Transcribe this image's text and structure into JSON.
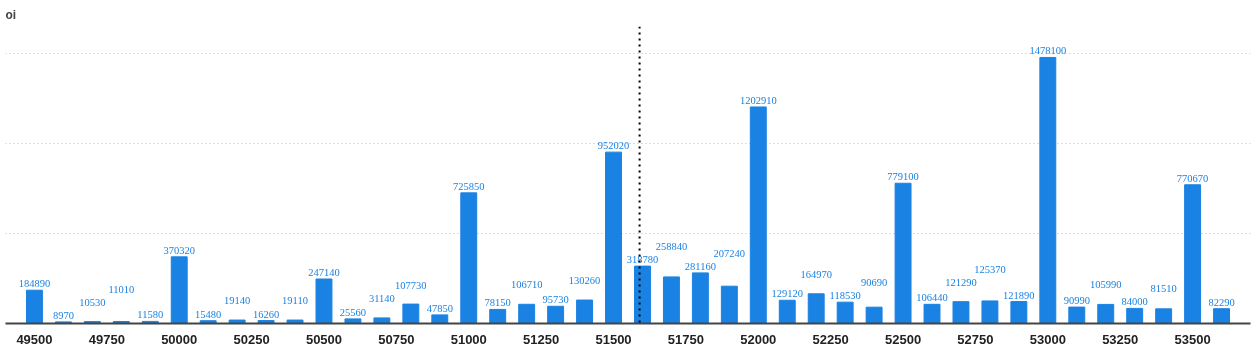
{
  "chart_data": {
    "type": "bar",
    "ylabel": "oi",
    "x": [
      49500,
      49600,
      49700,
      49800,
      49900,
      50000,
      50100,
      50200,
      50300,
      50400,
      50500,
      50600,
      50700,
      50800,
      50900,
      51000,
      51100,
      51200,
      51300,
      51400,
      51500,
      51600,
      51700,
      51800,
      51900,
      52000,
      52100,
      52200,
      52300,
      52400,
      52500,
      52600,
      52700,
      52800,
      52900,
      53000,
      53100,
      53200,
      53300,
      53400,
      53500,
      53600
    ],
    "values": [
      184890,
      8970,
      10530,
      11010,
      11580,
      370320,
      15480,
      19140,
      16260,
      19110,
      247140,
      25560,
      31140,
      107730,
      47850,
      725850,
      78150,
      106710,
      95730,
      130260,
      952020,
      318780,
      258840,
      281160,
      207240,
      1202910,
      129120,
      164970,
      118530,
      90690,
      779100,
      106440,
      121290,
      125370,
      121890,
      1478100,
      90990,
      105990,
      84000,
      81510,
      770670,
      82290
    ],
    "color": "#1a82e2",
    "data_labels": true,
    "xlim": [
      49400,
      53700
    ],
    "xticks": [
      49500,
      49750,
      50000,
      50250,
      50500,
      50750,
      51000,
      51250,
      51500,
      51750,
      52000,
      52250,
      52500,
      52750,
      53000,
      53250,
      53500
    ],
    "ylim": [
      0,
      1650000
    ],
    "yticks": [
      {
        "value": 0,
        "label": null
      },
      {
        "value": 500000,
        "label": null
      },
      {
        "value": 1000000,
        "label": null
      },
      {
        "value": 1500000,
        "label": null
      }
    ],
    "tick_labels": "x",
    "grid": "y",
    "ref_lines": [
      {
        "axis": "x",
        "value": 51590,
        "color": "#000000",
        "line_style": "dotted"
      }
    ]
  }
}
